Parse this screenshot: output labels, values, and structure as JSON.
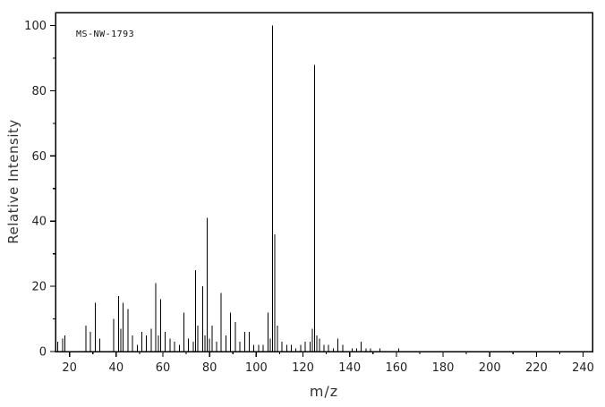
{
  "chart_data": {
    "type": "bar",
    "subtype": "mass-spectrum-stick-plot",
    "annotation": "MS-NW-1793",
    "xlabel": "m/z",
    "ylabel": "Relative Intensity",
    "xlim": [
      14,
      244
    ],
    "ylim": [
      0,
      104
    ],
    "xticks": [
      20,
      40,
      60,
      80,
      100,
      120,
      140,
      160,
      180,
      200,
      220,
      240
    ],
    "xtick_minor_step": 10,
    "yticks": [
      0,
      20,
      40,
      60,
      80,
      100
    ],
    "ytick_minor_step": 10,
    "grid": false,
    "legend": "none",
    "line_color": "#000000",
    "axis_color": "#000000",
    "background_color": "#ffffff",
    "base_peak": {
      "mz": 107,
      "intensity": 100
    },
    "peaks": [
      [
        15,
        3
      ],
      [
        17,
        4
      ],
      [
        18,
        5
      ],
      [
        27,
        8
      ],
      [
        29,
        6
      ],
      [
        31,
        15
      ],
      [
        33,
        4
      ],
      [
        39,
        10
      ],
      [
        41,
        17
      ],
      [
        42,
        7
      ],
      [
        43,
        15
      ],
      [
        45,
        13
      ],
      [
        47,
        5
      ],
      [
        49,
        2
      ],
      [
        51,
        6
      ],
      [
        53,
        5
      ],
      [
        55,
        7
      ],
      [
        57,
        21
      ],
      [
        58,
        5
      ],
      [
        59,
        16
      ],
      [
        61,
        6
      ],
      [
        63,
        4
      ],
      [
        65,
        3
      ],
      [
        67,
        2
      ],
      [
        69,
        12
      ],
      [
        71,
        4
      ],
      [
        73,
        3
      ],
      [
        74,
        25
      ],
      [
        75,
        8
      ],
      [
        77,
        20
      ],
      [
        78,
        5
      ],
      [
        79,
        41
      ],
      [
        80,
        4
      ],
      [
        81,
        8
      ],
      [
        83,
        3
      ],
      [
        85,
        18
      ],
      [
        87,
        5
      ],
      [
        89,
        12
      ],
      [
        91,
        9
      ],
      [
        93,
        3
      ],
      [
        95,
        6
      ],
      [
        97,
        6
      ],
      [
        99,
        2
      ],
      [
        101,
        2
      ],
      [
        103,
        2
      ],
      [
        105,
        12
      ],
      [
        106,
        4
      ],
      [
        107,
        100
      ],
      [
        108,
        36
      ],
      [
        109,
        8
      ],
      [
        111,
        3
      ],
      [
        113,
        2
      ],
      [
        115,
        2
      ],
      [
        117,
        1
      ],
      [
        119,
        2
      ],
      [
        121,
        3
      ],
      [
        123,
        3
      ],
      [
        124,
        7
      ],
      [
        125,
        88
      ],
      [
        126,
        5
      ],
      [
        127,
        4
      ],
      [
        129,
        2
      ],
      [
        131,
        2
      ],
      [
        133,
        1
      ],
      [
        135,
        4
      ],
      [
        137,
        2
      ],
      [
        141,
        1
      ],
      [
        143,
        1
      ],
      [
        145,
        3
      ],
      [
        147,
        1
      ],
      [
        149,
        1
      ],
      [
        153,
        1
      ],
      [
        161,
        1
      ]
    ]
  }
}
